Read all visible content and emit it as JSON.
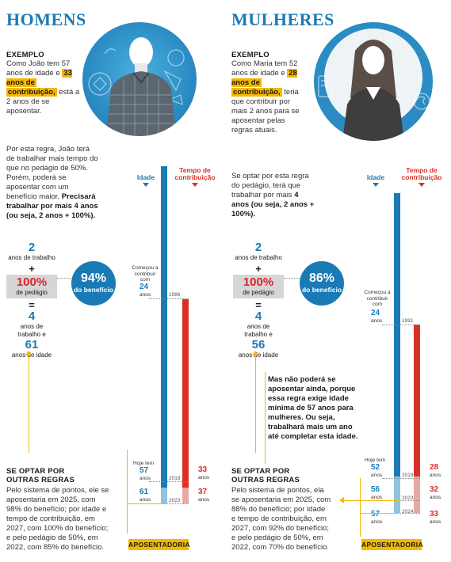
{
  "colors": {
    "blue": "#1a7ab5",
    "red": "#d93025",
    "yellow": "#f5b800",
    "gray": "#d4d6d8"
  },
  "men": {
    "heading": "HOMENS",
    "example_label": "EXEMPLO",
    "example_pre": "Como João tem 57 anos de idade e",
    "example_highlight_1": "33 anos de",
    "example_highlight_2": "contribuição,",
    "example_post": "está a 2 anos de se aposentar.",
    "photo_icon": "man-photo",
    "rule_pre": "Por esta regra, João terá de trabalhar mais tempo do que no pedágio de 50%. Porém, poderá se aposentar com um benefício maior.",
    "rule_bold": "Precisará trabalhar por mais 4 anos (ou seja, 2 anos + 100%).",
    "stack": {
      "years_num": "2",
      "years_label": "anos de trabalho",
      "plus": "+",
      "pct": "100%",
      "pct_label": "de pedágio",
      "equals": "=",
      "result_num": "4",
      "result_label_1": "anos de",
      "result_label_2": "trabalho e",
      "age_num": "61",
      "age_label": "anos de idade"
    },
    "benefit": {
      "value": "94%",
      "label": "do benefício"
    },
    "col_idade": "Idade",
    "col_tempo_1": "Tempo de",
    "col_tempo_2": "contribuição",
    "start_note_1": "Começou a",
    "start_note_2": "contribuir",
    "start_note_3": "com",
    "start_age": "24",
    "start_age_unit": "anos",
    "year_start": "1986",
    "today_label": "Hoje tem",
    "today_age": "57",
    "today_age_unit": "anos",
    "today_year": "2019",
    "today_contrib": "33",
    "today_contrib_unit": "anos",
    "end_age": "61",
    "end_age_unit": "anos",
    "end_year": "2023",
    "end_contrib": "37",
    "end_contrib_unit": "anos",
    "other_head_1": "SE OPTAR POR",
    "other_head_2": "OUTRAS REGRAS",
    "other_text": "Pelo sistema de pontos, ele se aposentaria em 2025, com 98% do benefício; por idade e tempo de contribuição, em  2027, com 100% do benefício; e pelo pedágio de 50%, em 2022, com 85% do benefício.",
    "aposentadoria": "APOSENTADORIA"
  },
  "women": {
    "heading": "MULHERES",
    "example_label": "EXEMPLO",
    "example_pre": "Como Maria tem 52 anos de idade e",
    "example_highlight_1": "28 anos de",
    "example_highlight_2": "contribuição,",
    "example_post": "teria que contribuir por mais 2 anos para se aposentar pelas regras atuais.",
    "photo_icon": "woman-photo",
    "rule_pre": "Se optar por esta regra do pedágio, terá que trabalhar por mais",
    "rule_bold": "4 anos (ou seja, 2 anos + 100%).",
    "stack": {
      "years_num": "2",
      "years_label": "anos de trabalho",
      "plus": "+",
      "pct": "100%",
      "pct_label": "de pedágio",
      "equals": "=",
      "result_num": "4",
      "result_label_1": "anos de",
      "result_label_2": "trabalho e",
      "age_num": "56",
      "age_label": "anos de idade"
    },
    "benefit": {
      "value": "86%",
      "label": "do benefício"
    },
    "col_idade": "Idade",
    "col_tempo_1": "Tempo de",
    "col_tempo_2": "contribuição",
    "start_note_1": "Começou a",
    "start_note_2": "contribuir com",
    "start_age": "24",
    "start_age_unit": "anos",
    "year_start": "1991",
    "min_age_note": "Mas não poderá se aposentar ainda, porque essa regra exige idade mínima de 57 anos para mulheres. Ou seja, trabalhará mais um ano até completar esta idade.",
    "today_label": "Hoje tem",
    "today_age": "52",
    "today_age_unit": "anos",
    "today_year": "2019",
    "today_contrib": "28",
    "today_contrib_unit": "anos",
    "mid_age": "56",
    "mid_age_unit": "anos",
    "mid_year": "2023",
    "mid_contrib": "32",
    "mid_contrib_unit": "anos",
    "end_age": "57",
    "end_age_unit": "anos",
    "end_year": "2024",
    "end_contrib": "33",
    "end_contrib_unit": "anos",
    "other_head_1": "SE OPTAR POR",
    "other_head_2": "OUTRAS REGRAS",
    "other_text": "Pelo sistema de pontos, ela se aposentaria em 2025, com 88% do benefício; por idade e tempo de contribuição, em  2027, com 92% do benefício; e pelo pedágio de 50%, em 2022, com 70% do benefício.",
    "aposentadoria": "APOSENTADORIA"
  }
}
